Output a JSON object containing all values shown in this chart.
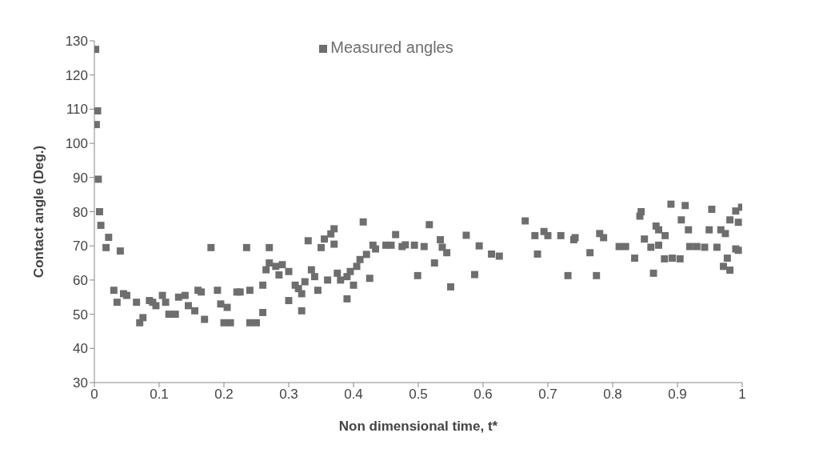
{
  "chart_data": {
    "type": "scatter",
    "xlabel": "Non dimensional time, t*",
    "ylabel": "Contact angle (Deg.)",
    "xlim": [
      0,
      1
    ],
    "ylim": [
      30,
      130
    ],
    "xticks": [
      0,
      0.1,
      0.2,
      0.3,
      0.4,
      0.5,
      0.6,
      0.7,
      0.8,
      0.9,
      1
    ],
    "yticks": [
      30,
      40,
      50,
      60,
      70,
      80,
      90,
      100,
      110,
      120,
      130
    ],
    "grid": false,
    "legend": "top",
    "marker": "square",
    "series": [
      {
        "name": "Measured angles",
        "color": "#6e6e6e",
        "x": [
          0.002,
          0.003,
          0.005,
          0.006,
          0.008,
          0.01,
          0.018,
          0.022,
          0.03,
          0.035,
          0.04,
          0.045,
          0.05,
          0.065,
          0.07,
          0.075,
          0.085,
          0.09,
          0.095,
          0.105,
          0.11,
          0.115,
          0.125,
          0.13,
          0.14,
          0.145,
          0.155,
          0.16,
          0.165,
          0.17,
          0.18,
          0.19,
          0.195,
          0.2,
          0.205,
          0.21,
          0.22,
          0.225,
          0.235,
          0.24,
          0.24,
          0.25,
          0.26,
          0.26,
          0.265,
          0.27,
          0.27,
          0.28,
          0.285,
          0.29,
          0.3,
          0.3,
          0.31,
          0.315,
          0.32,
          0.32,
          0.325,
          0.33,
          0.335,
          0.34,
          0.345,
          0.35,
          0.355,
          0.36,
          0.365,
          0.37,
          0.37,
          0.375,
          0.38,
          0.39,
          0.39,
          0.395,
          0.4,
          0.405,
          0.41,
          0.415,
          0.42,
          0.425,
          0.43,
          0.434,
          0.45,
          0.458,
          0.465,
          0.475,
          0.48,
          0.494,
          0.499,
          0.509,
          0.517,
          0.525,
          0.534,
          0.537,
          0.544,
          0.55,
          0.574,
          0.587,
          0.594,
          0.613,
          0.625,
          0.665,
          0.68,
          0.684,
          0.694,
          0.7,
          0.72,
          0.731,
          0.74,
          0.742,
          0.765,
          0.775,
          0.78,
          0.786,
          0.81,
          0.82,
          0.834,
          0.842,
          0.844,
          0.849,
          0.859,
          0.863,
          0.867,
          0.871,
          0.871,
          0.88,
          0.881,
          0.89,
          0.892,
          0.904,
          0.906,
          0.912,
          0.917,
          0.919,
          0.93,
          0.942,
          0.949,
          0.953,
          0.961,
          0.967,
          0.971,
          0.974,
          0.977,
          0.981,
          0.981,
          0.99,
          0.99,
          0.994,
          0.994,
          0.999
        ],
        "values": [
          127.5,
          105.5,
          109.5,
          89.5,
          80,
          76,
          69.5,
          72.5,
          57,
          53.5,
          68.5,
          56,
          55.5,
          53.5,
          47.5,
          49,
          54,
          53.5,
          52.5,
          55.5,
          53.5,
          50,
          50,
          55,
          55.5,
          52.5,
          51,
          57,
          56.5,
          48.5,
          69.5,
          57,
          53,
          47.5,
          52,
          47.5,
          56.5,
          56.5,
          69.5,
          57,
          47.5,
          47.5,
          50.5,
          58.5,
          63,
          69.5,
          65,
          64,
          61.5,
          64.5,
          54,
          62.5,
          58.5,
          57.5,
          51,
          56,
          59.5,
          71.5,
          63,
          61,
          57,
          69.5,
          72,
          60,
          73.5,
          75,
          70.5,
          62,
          60,
          61,
          54.5,
          62.5,
          58.5,
          64,
          66,
          77,
          67.5,
          60.5,
          70.2,
          69.1,
          70.2,
          70.2,
          73.3,
          69.8,
          70.3,
          70.2,
          61.3,
          69.8,
          76.2,
          65,
          71.8,
          69.6,
          68,
          58,
          73.1,
          61.6,
          70,
          67.6,
          67,
          77.3,
          73,
          67.6,
          74.2,
          73,
          73,
          61.3,
          71.8,
          72.4,
          68,
          61.3,
          73.6,
          72.4,
          69.8,
          69.8,
          66.4,
          78.7,
          80,
          72,
          69.6,
          62,
          75.8,
          70.2,
          74.7,
          66.2,
          73,
          82.2,
          66.4,
          66.2,
          77.6,
          81.8,
          74.7,
          69.8,
          69.8,
          69.6,
          74.7,
          80.7,
          69.6,
          74.7,
          64,
          73.6,
          66.4,
          62.9,
          77.6,
          69.1,
          80.2,
          68.7,
          76.9,
          81.3
        ]
      }
    ]
  }
}
